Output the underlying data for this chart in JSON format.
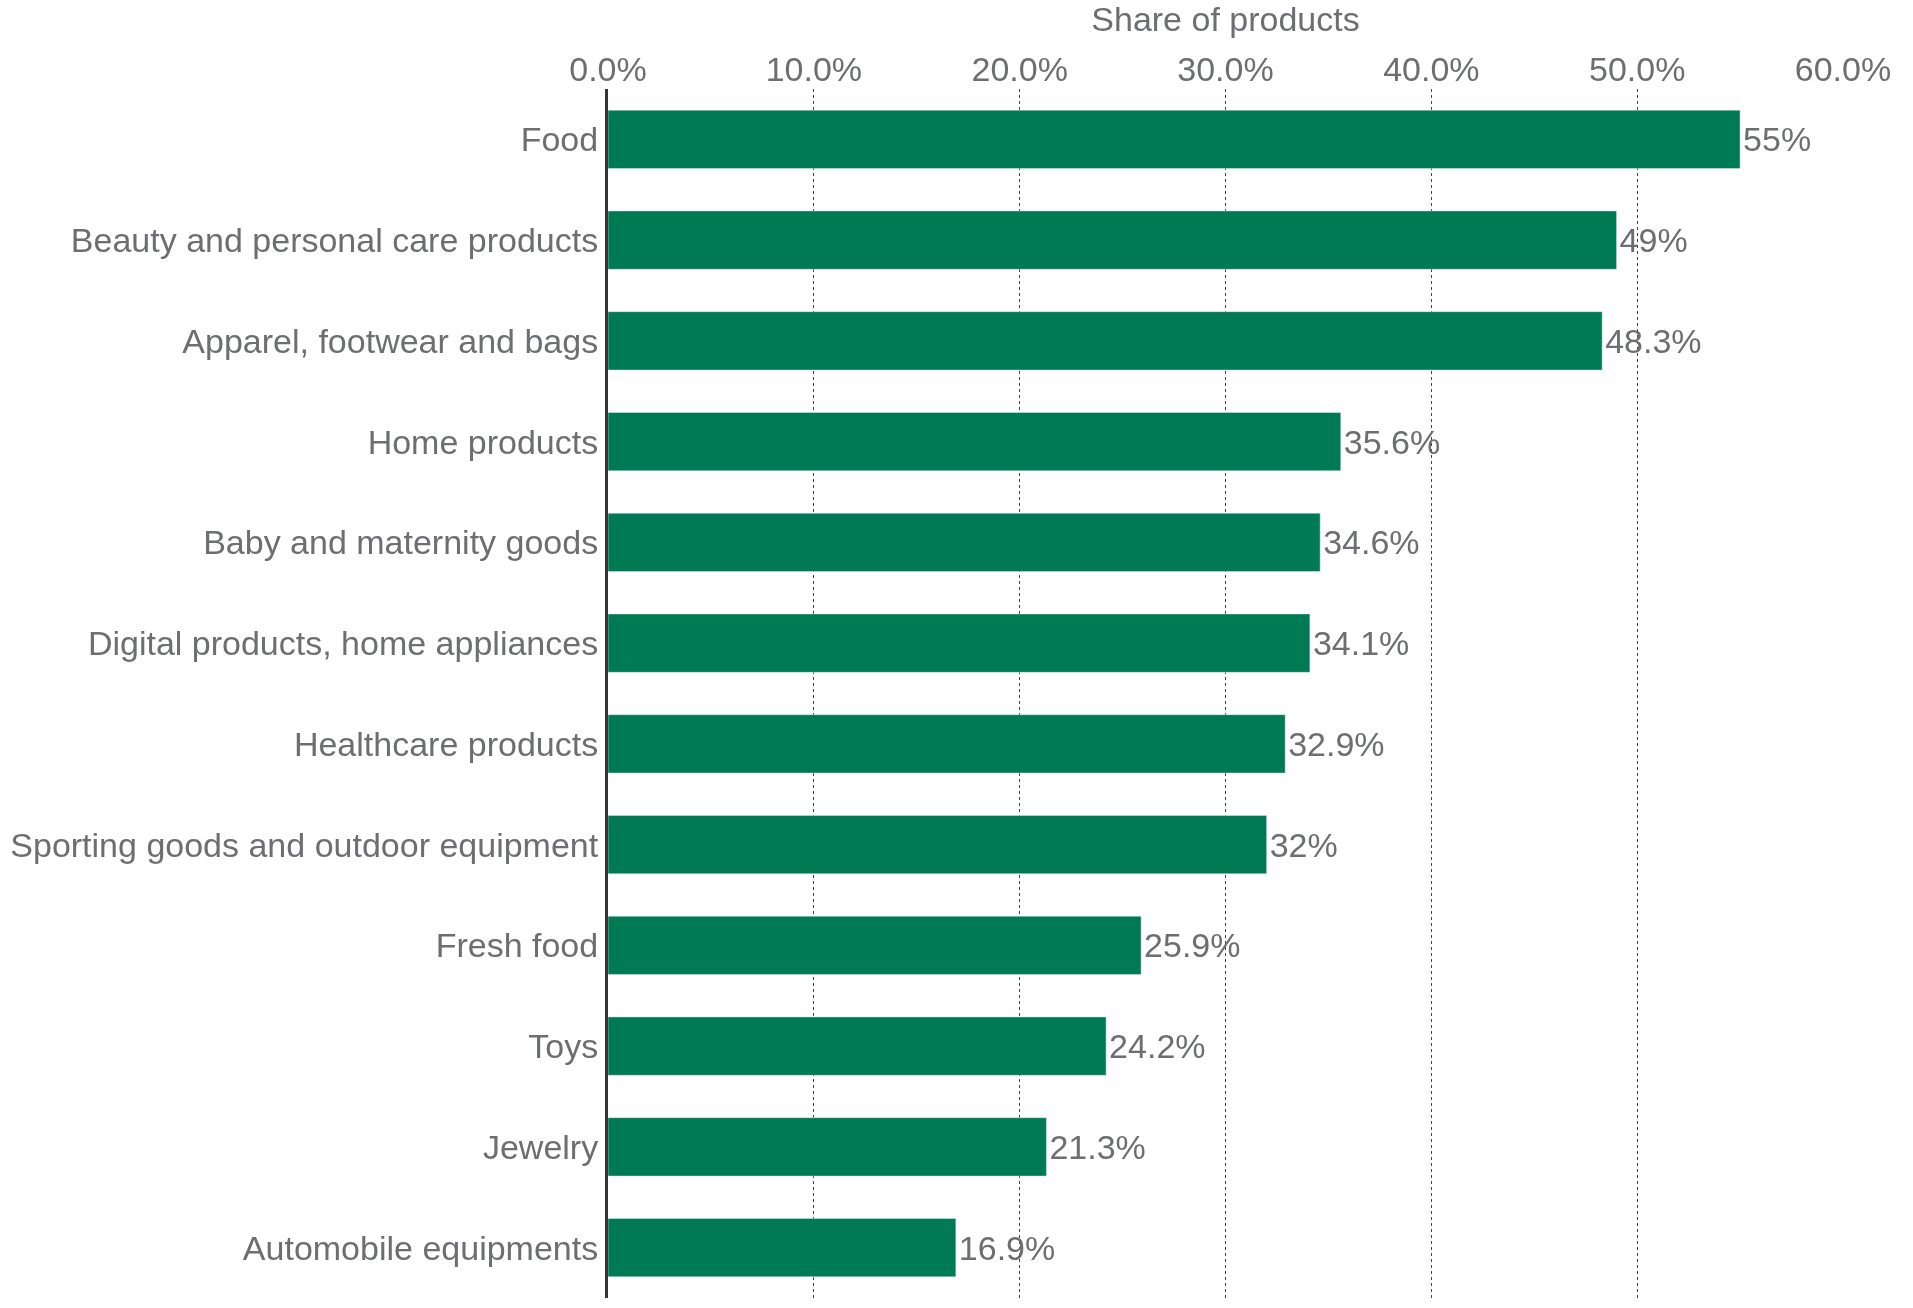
{
  "chart_data": {
    "type": "bar",
    "orientation": "horizontal",
    "xlabel": "Share of products",
    "categories": [
      "Food",
      "Beauty and personal care products",
      "Apparel, footwear and bags",
      "Home products",
      "Baby and maternity goods",
      "Digital products, home appliances",
      "Healthcare products",
      "Sporting goods and outdoor equipment",
      "Fresh food",
      "Toys",
      "Jewelry",
      "Automobile equipments"
    ],
    "values": [
      55,
      49,
      48.3,
      35.6,
      34.6,
      34.1,
      32.9,
      32,
      25.9,
      24.2,
      21.3,
      16.9
    ],
    "value_labels": [
      "55%",
      "49%",
      "48.3%",
      "35.6%",
      "34.6%",
      "34.1%",
      "32.9%",
      "32%",
      "25.9%",
      "24.2%",
      "21.3%",
      "16.9%"
    ],
    "color": "#007a53",
    "xlim": [
      0,
      60
    ],
    "xticks": [
      {
        "value": 0,
        "label": "0.0%"
      },
      {
        "value": 10,
        "label": "10.0%"
      },
      {
        "value": 20,
        "label": "20.0%"
      },
      {
        "value": 30,
        "label": "30.0%"
      },
      {
        "value": 40,
        "label": "40.0%"
      },
      {
        "value": 50,
        "label": "50.0%"
      },
      {
        "value": 60,
        "label": "60.0%"
      }
    ],
    "grid": "x",
    "legend": false
  }
}
